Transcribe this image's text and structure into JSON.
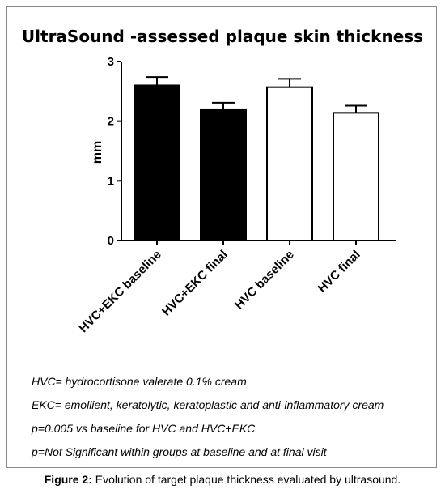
{
  "chart_data": {
    "type": "bar",
    "title": "UltraSound -assessed  plaque skin thickness",
    "ylabel": "mm",
    "xlabel": "",
    "ylim": [
      0,
      3
    ],
    "yticks": [
      "0",
      "1",
      "2",
      "3"
    ],
    "categories": [
      "HVC+EKC baseline",
      "HVC+EKC final",
      "HVC baseline",
      "HVC final"
    ],
    "values": [
      2.6,
      2.2,
      2.57,
      2.14
    ],
    "errors": [
      0.14,
      0.11,
      0.14,
      0.12
    ],
    "fills": [
      "#000000",
      "#000000",
      "#ffffff",
      "#ffffff"
    ],
    "grid": false
  },
  "notes": [
    "HVC= hydrocortisone valerate 0.1% cream",
    "EKC= emollient, keratolytic, keratoplastic and anti-inflammatory cream",
    "p=0.005 vs baseline for HVC and HVC+EKC",
    "p=Not Significant within groups at baseline and at final visit"
  ],
  "caption": {
    "label": "Figure 2:",
    "text": "Evolution of target plaque thickness evaluated by ultrasound."
  }
}
